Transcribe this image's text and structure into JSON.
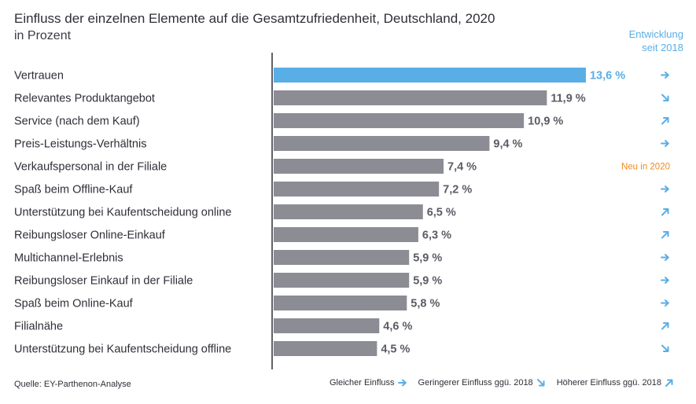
{
  "header": {
    "title": "Einfluss der einzelnen Elemente auf die Gesamtzufriedenheit, Deutschland, 2020",
    "subtitle": "in Prozent"
  },
  "trend_column": {
    "line1": "Entwicklung",
    "line2": "seit 2018"
  },
  "colors": {
    "highlight": "#5aaee6",
    "bar": "#8c8c94",
    "new": "#ef8a1e",
    "axis": "#2e2e38"
  },
  "chart_data": {
    "type": "bar",
    "orientation": "horizontal",
    "unit_suffix": " %",
    "categories": [
      "Vertrauen",
      "Relevantes Produktangebot",
      "Service (nach dem Kauf)",
      "Preis-Leistungs-Verhältnis",
      "Verkaufspersonal in der Filiale",
      "Spaß beim Offline-Kauf",
      "Unterstützung bei Kaufentscheidung online",
      "Reibungsloser Online-Einkauf",
      "Multichannel-Erlebnis",
      "Reibungsloser Einkauf in der Filiale",
      "Spaß beim Online-Kauf",
      "Filialnähe",
      "Unterstützung bei Kaufentscheidung offline"
    ],
    "values": [
      13.6,
      11.9,
      10.9,
      9.4,
      7.4,
      7.2,
      6.5,
      6.3,
      5.9,
      5.9,
      5.8,
      4.6,
      4.5
    ],
    "value_labels": [
      "13,6 %",
      "11,9 %",
      "10,9 %",
      "9,4 %",
      "7,4 %",
      "7,2 %",
      "6,5 %",
      "6,3 %",
      "5,9 %",
      "5,9 %",
      "5,8 %",
      "4,6 %",
      "4,5 %"
    ],
    "highlighted_index": 0,
    "trend": [
      "same",
      "lower",
      "higher",
      "same",
      "new",
      "same",
      "higher",
      "higher",
      "same",
      "same",
      "same",
      "higher",
      "lower"
    ],
    "new_label": "Neu in 2020",
    "xlim": [
      0,
      14.8
    ],
    "grid": false
  },
  "footer": {
    "source": "Quelle: EY-Parthenon-Analyse",
    "legend": [
      {
        "key": "same",
        "label": "Gleicher Einfluss"
      },
      {
        "key": "lower",
        "label": "Geringerer Einfluss ggü. 2018"
      },
      {
        "key": "higher",
        "label": "Höherer Einfluss ggü. 2018"
      }
    ]
  }
}
